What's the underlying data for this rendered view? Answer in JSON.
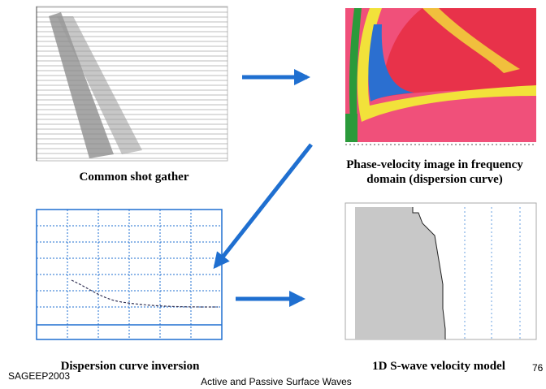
{
  "panels": [
    {
      "caption": [
        "Common shot gather"
      ]
    },
    {
      "caption": [
        "Phase-velocity image in frequency",
        "domain (dispersion curve)"
      ]
    },
    {
      "caption": [
        "Dispersion curve inversion"
      ]
    },
    {
      "caption": [
        "1D S-wave velocity model"
      ]
    }
  ],
  "footer": {
    "left": "SAGEEP2003",
    "center": "Active and Passive Surface Waves",
    "page": "76"
  }
}
